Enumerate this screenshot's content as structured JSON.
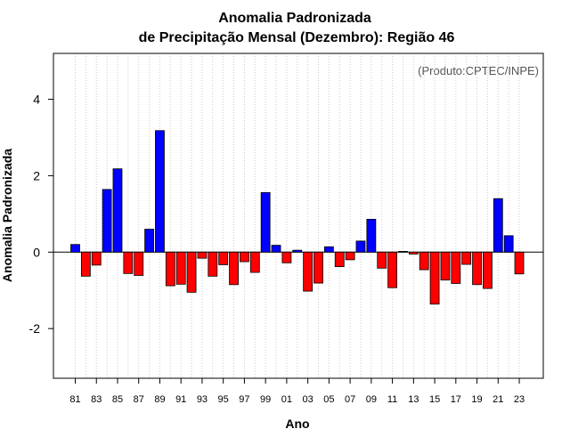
{
  "chart_data": {
    "type": "bar",
    "title_line1": "Anomalia Padronizada",
    "title_line2": "de Precipitação Mensal (Dezembro): Região 46",
    "xlabel": "Ano",
    "ylabel": "Anomalia Padronizada",
    "credit": "(Produto:CPTEC/INPE)",
    "ylim": [
      -3.3,
      5.2
    ],
    "yticks": [
      -2,
      0,
      2,
      4
    ],
    "grid": "vertical dotted",
    "positive_color": "#0000ff",
    "negative_color": "#ff0000",
    "x_tick_labels": [
      "81",
      "83",
      "85",
      "87",
      "89",
      "91",
      "93",
      "95",
      "97",
      "99",
      "01",
      "03",
      "05",
      "07",
      "09",
      "11",
      "13",
      "15",
      "17",
      "19",
      "21",
      "23"
    ],
    "years": [
      1981,
      1982,
      1983,
      1984,
      1985,
      1986,
      1987,
      1988,
      1989,
      1990,
      1991,
      1992,
      1993,
      1994,
      1995,
      1996,
      1997,
      1998,
      1999,
      2000,
      2001,
      2002,
      2003,
      2004,
      2005,
      2006,
      2007,
      2008,
      2009,
      2010,
      2011,
      2012,
      2013,
      2014,
      2015,
      2016,
      2017,
      2018,
      2019,
      2020,
      2021,
      2022,
      2023
    ],
    "values": [
      0.2,
      -0.63,
      -0.34,
      1.64,
      2.18,
      -0.56,
      -0.61,
      0.6,
      3.18,
      -0.88,
      -0.84,
      -1.05,
      -0.16,
      -0.63,
      -0.33,
      -0.85,
      -0.25,
      -0.53,
      1.56,
      0.18,
      -0.28,
      0.05,
      -1.02,
      -0.81,
      0.14,
      -0.38,
      -0.2,
      0.29,
      0.86,
      -0.42,
      -0.93,
      0.02,
      -0.05,
      -0.46,
      -1.36,
      -0.73,
      -0.82,
      -0.32,
      -0.85,
      -0.95,
      1.4,
      0.43,
      -0.57
    ]
  }
}
